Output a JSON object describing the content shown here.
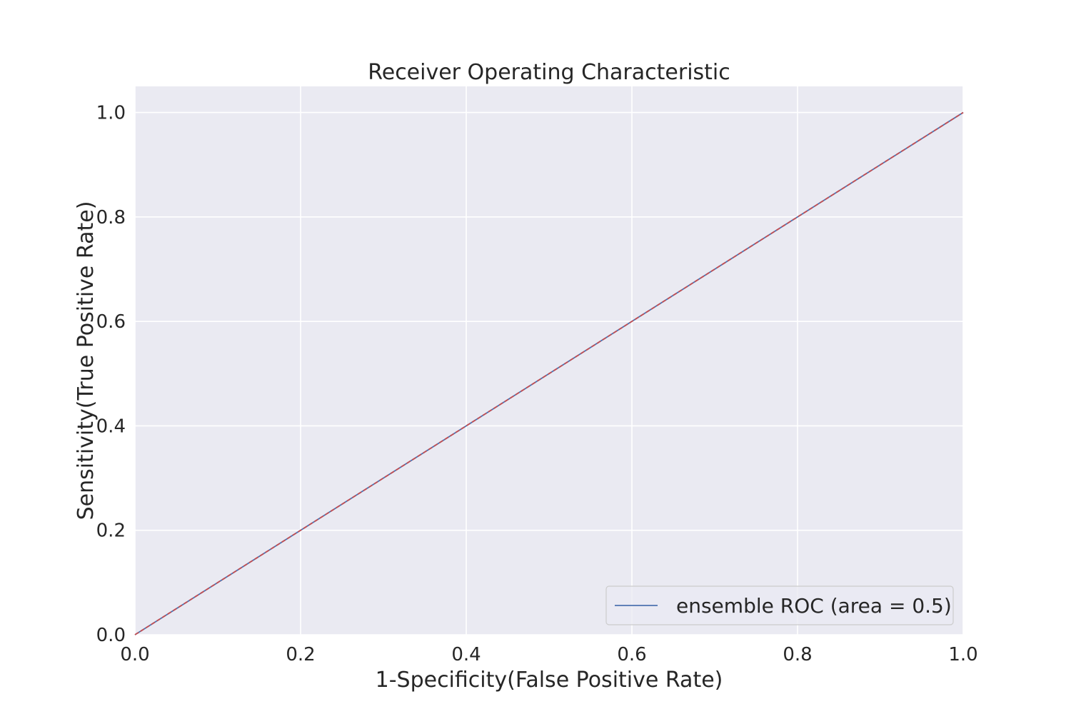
{
  "chart_data": {
    "type": "line",
    "title": "Receiver Operating Characteristic",
    "xlabel": "1-Specificity(False Positive Rate)",
    "ylabel": "Sensitivity(True Positive Rate)",
    "xlim": [
      0.0,
      1.0
    ],
    "ylim": [
      0.0,
      1.05
    ],
    "xticks": [
      "0.0",
      "0.2",
      "0.4",
      "0.6",
      "0.8",
      "1.0"
    ],
    "yticks": [
      "0.0",
      "0.2",
      "0.4",
      "0.6",
      "0.8",
      "1.0"
    ],
    "grid": true,
    "legend_position": "lower-right",
    "series": [
      {
        "name": "ensemble ROC (area = 0.5)",
        "x": [
          0.0,
          1.0
        ],
        "y": [
          0.0,
          1.0
        ],
        "color": "#4c72b0",
        "style": "solid"
      },
      {
        "x": [
          0.0,
          1.0
        ],
        "y": [
          0.0,
          1.0
        ],
        "color": "#c44e52",
        "style": "dashed"
      }
    ],
    "colors": {
      "plot_background": "#eaeaf2",
      "grid": "#ffffff",
      "text": "#262626"
    }
  }
}
